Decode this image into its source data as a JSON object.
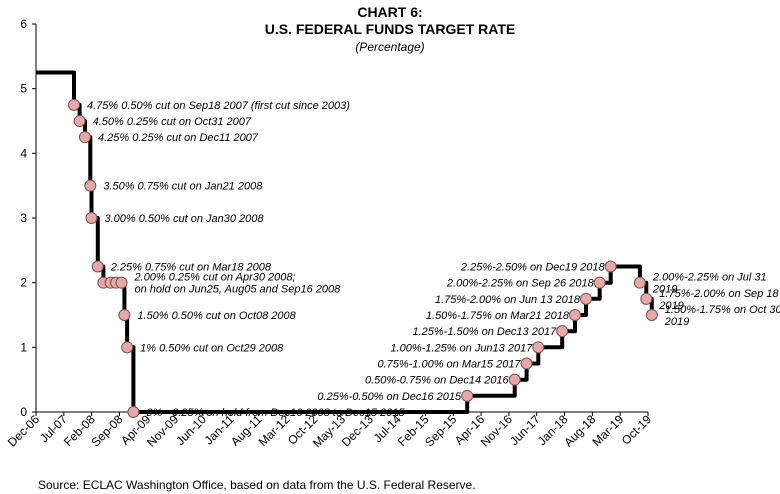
{
  "title": "CHART 6:",
  "subtitle": "U.S. FEDERAL FUNDS TARGET RATE",
  "unit_note": "(Percentage)",
  "source": "Source: ECLAC Washington Office, based on data from the U.S. Federal Reserve.",
  "colors": {
    "line": "#000000",
    "marker_fill": "#e6a8a8",
    "marker_stroke": "#7a5050"
  },
  "chart_data": {
    "type": "line",
    "title": "U.S. FEDERAL FUNDS TARGET RATE",
    "xlabel": "",
    "ylabel": "",
    "ylim": [
      0,
      6
    ],
    "y_ticks": [
      "0",
      "1",
      "2",
      "3",
      "4",
      "5",
      "6"
    ],
    "x_tick_labels": [
      "Dec-06",
      "Jul-07",
      "Feb-08",
      "Sep-08",
      "Apr-09",
      "Nov-09",
      "Jun-10",
      "Jan-11",
      "Aug-11",
      "Mar-12",
      "Oct-12",
      "May-13",
      "Dec-13",
      "Jul-14",
      "Feb-15",
      "Sep-15",
      "Apr-16",
      "Nov-16",
      "Jun-17",
      "Jan-18",
      "Aug-18",
      "Mar-19",
      "Oct-19"
    ],
    "grid": false,
    "series": [
      {
        "values": [
          [
            "2006-12-01",
            5.25
          ],
          [
            "2007-09-18",
            5.25
          ],
          [
            "2007-09-18",
            4.75
          ],
          [
            "2007-10-31",
            4.75
          ],
          [
            "2007-10-31",
            4.5
          ],
          [
            "2007-12-11",
            4.5
          ],
          [
            "2007-12-11",
            4.25
          ],
          [
            "2008-01-21",
            4.25
          ],
          [
            "2008-01-21",
            3.5
          ],
          [
            "2008-01-30",
            3.5
          ],
          [
            "2008-01-30",
            3.0
          ],
          [
            "2008-03-18",
            3.0
          ],
          [
            "2008-03-18",
            2.25
          ],
          [
            "2008-04-30",
            2.25
          ],
          [
            "2008-04-30",
            2.0
          ],
          [
            "2008-10-08",
            2.0
          ],
          [
            "2008-10-08",
            1.5
          ],
          [
            "2008-10-29",
            1.5
          ],
          [
            "2008-10-29",
            1.0
          ],
          [
            "2008-12-16",
            1.0
          ],
          [
            "2008-12-16",
            0.0
          ],
          [
            "2015-12-16",
            0.0
          ],
          [
            "2015-12-16",
            0.25
          ],
          [
            "2016-12-14",
            0.25
          ],
          [
            "2016-12-14",
            0.5
          ],
          [
            "2017-03-15",
            0.5
          ],
          [
            "2017-03-15",
            0.75
          ],
          [
            "2017-06-13",
            0.75
          ],
          [
            "2017-06-13",
            1.0
          ],
          [
            "2017-12-13",
            1.0
          ],
          [
            "2017-12-13",
            1.25
          ],
          [
            "2018-03-21",
            1.25
          ],
          [
            "2018-03-21",
            1.5
          ],
          [
            "2018-06-13",
            1.5
          ],
          [
            "2018-06-13",
            1.75
          ],
          [
            "2018-09-26",
            1.75
          ],
          [
            "2018-09-26",
            2.0
          ],
          [
            "2018-12-19",
            2.0
          ],
          [
            "2018-12-19",
            2.25
          ],
          [
            "2019-07-31",
            2.25
          ],
          [
            "2019-07-31",
            2.0
          ],
          [
            "2019-09-18",
            2.0
          ],
          [
            "2019-09-18",
            1.75
          ],
          [
            "2019-10-30",
            1.75
          ],
          [
            "2019-10-30",
            1.5
          ]
        ]
      }
    ],
    "markers": [
      {
        "x": "2007-09-18",
        "y": 4.75
      },
      {
        "x": "2007-10-31",
        "y": 4.5
      },
      {
        "x": "2007-12-11",
        "y": 4.25
      },
      {
        "x": "2008-01-21",
        "y": 3.5
      },
      {
        "x": "2008-01-30",
        "y": 3.0
      },
      {
        "x": "2008-03-18",
        "y": 2.25
      },
      {
        "x": "2008-04-30",
        "y": 2.0
      },
      {
        "x": "2008-06-25",
        "y": 2.0
      },
      {
        "x": "2008-08-05",
        "y": 2.0
      },
      {
        "x": "2008-09-16",
        "y": 2.0
      },
      {
        "x": "2008-10-08",
        "y": 1.5
      },
      {
        "x": "2008-10-29",
        "y": 1.0
      },
      {
        "x": "2008-12-16",
        "y": 0.0
      },
      {
        "x": "2015-12-16",
        "y": 0.25
      },
      {
        "x": "2016-12-14",
        "y": 0.5
      },
      {
        "x": "2017-03-15",
        "y": 0.75
      },
      {
        "x": "2017-06-13",
        "y": 1.0
      },
      {
        "x": "2017-12-13",
        "y": 1.25
      },
      {
        "x": "2018-03-21",
        "y": 1.5
      },
      {
        "x": "2018-06-13",
        "y": 1.75
      },
      {
        "x": "2018-09-26",
        "y": 2.0
      },
      {
        "x": "2018-12-19",
        "y": 2.25
      },
      {
        "x": "2019-07-31",
        "y": 2.0
      },
      {
        "x": "2019-09-18",
        "y": 1.75
      },
      {
        "x": "2019-10-30",
        "y": 1.5
      }
    ],
    "annotations": [
      {
        "lines": [
          "4.75%  0.50% cut on Sep18 2007 (first cut since 2003)"
        ],
        "x": "2007-09-18",
        "y": 4.75,
        "align": "left"
      },
      {
        "lines": [
          "4.50%  0.25% cut on Oct31 2007"
        ],
        "x": "2007-10-31",
        "y": 4.5,
        "align": "left"
      },
      {
        "lines": [
          "4.25%  0.25% cut on Dec11 2007"
        ],
        "x": "2007-12-11",
        "y": 4.25,
        "align": "left"
      },
      {
        "lines": [
          "3.50% 0.75% cut on Jan21 2008"
        ],
        "x": "2008-01-21",
        "y": 3.5,
        "align": "left"
      },
      {
        "lines": [
          "3.00%  0.50% cut on Jan30 2008"
        ],
        "x": "2008-01-30",
        "y": 3.0,
        "align": "left"
      },
      {
        "lines": [
          "2.25%  0.75% cut on Mar18 2008"
        ],
        "x": "2008-03-18",
        "y": 2.25,
        "align": "left"
      },
      {
        "lines": [
          "2.00%  0.25% cut on Apr30 2008;",
          "on hold on Jun25, Aug05 and Sep16 2008"
        ],
        "x": "2008-09-16",
        "y": 2.0,
        "align": "left"
      },
      {
        "lines": [
          "1.50%   0.50% cut on Oct08 2008"
        ],
        "x": "2008-10-08",
        "y": 1.5,
        "align": "left"
      },
      {
        "lines": [
          "1%   0.50% cut on Oct29 2008"
        ],
        "x": "2008-10-29",
        "y": 1.0,
        "align": "left"
      },
      {
        "lines": [
          "0% - 0.25% on  hold from Dec16 2008 to Dec15 2015"
        ],
        "x": "2008-12-16",
        "y": 0.0,
        "align": "left"
      },
      {
        "lines": [
          "0.25%-0.50% on Dec16 2015"
        ],
        "x": "2015-12-16",
        "y": 0.25,
        "align": "right"
      },
      {
        "lines": [
          "0.50%-0.75% on Dec14 2016"
        ],
        "x": "2016-12-14",
        "y": 0.5,
        "align": "right"
      },
      {
        "lines": [
          "0.75%-1.00% on Mar15 2017"
        ],
        "x": "2017-03-15",
        "y": 0.75,
        "align": "right"
      },
      {
        "lines": [
          "1.00%-1.25% on Jun13 2017"
        ],
        "x": "2017-06-13",
        "y": 1.0,
        "align": "right"
      },
      {
        "lines": [
          "1.25%-1.50% on Dec13 2017"
        ],
        "x": "2017-12-13",
        "y": 1.25,
        "align": "right"
      },
      {
        "lines": [
          "1.50%-1.75% on Mar21 2018"
        ],
        "x": "2018-03-21",
        "y": 1.5,
        "align": "right"
      },
      {
        "lines": [
          "1.75%-2.00% on Jun 13 2018"
        ],
        "x": "2018-06-13",
        "y": 1.75,
        "align": "right"
      },
      {
        "lines": [
          "2.00%-2.25% on Sep 26 2018"
        ],
        "x": "2018-09-26",
        "y": 2.0,
        "align": "right"
      },
      {
        "lines": [
          "2.25%-2.50% on Dec19 2018"
        ],
        "x": "2018-12-19",
        "y": 2.25,
        "align": "right"
      },
      {
        "lines": [
          "2.00%-2.25% on Jul 31",
          "2019"
        ],
        "x": "2019-07-31",
        "y": 2.0,
        "align": "left"
      },
      {
        "lines": [
          "1.75%-2.00% on Sep 18",
          "2019"
        ],
        "x": "2019-09-18",
        "y": 1.75,
        "align": "left"
      },
      {
        "lines": [
          "1.50%-1.75% on Oct 30",
          "2019"
        ],
        "x": "2019-10-30",
        "y": 1.5,
        "align": "left"
      }
    ]
  }
}
